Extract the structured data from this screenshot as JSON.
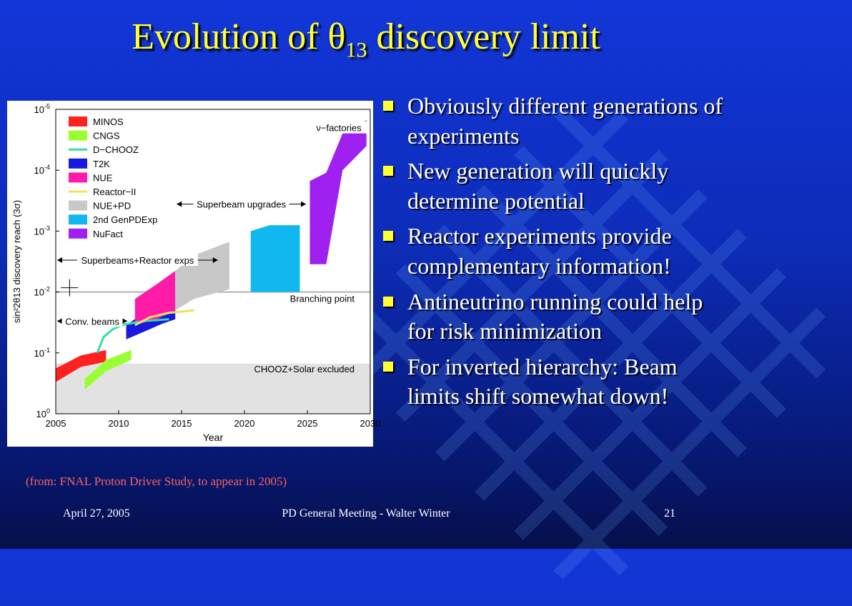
{
  "slide": {
    "title": "Evolution of θ",
    "title_sub": "13",
    "title_tail": " discovery limit",
    "bullets": [
      "Obviously different generations of experiments",
      "New generation will quickly determine potential",
      "Reactor experiments provide complementary information!",
      "Antineutrino running could help for risk minimization",
      "For inverted hierarchy: Beam limits shift somewhat down!"
    ],
    "source_note": "(from: FNAL Proton Driver Study, to appear in 2005)",
    "footer": {
      "date": "April 27, 2005",
      "event": "PD General Meeting - Walter Winter",
      "page": "21"
    },
    "colors": {
      "title": "#ffff33",
      "bullet_marker": "#ffff33",
      "source_note": "#ff6060"
    }
  },
  "chart_data": {
    "type": "area",
    "xlabel": "Year",
    "ylabel": "sin²2θ13 discovery reach (3σ)",
    "xlim": [
      2005,
      2030
    ],
    "x_ticks": [
      "2005",
      "2010",
      "2015",
      "2020",
      "2025",
      "2030"
    ],
    "y_scale": "log-reversed",
    "ylim": [
      1e-05,
      1
    ],
    "y_tick_exponents": [
      "-5",
      "-4",
      "-3",
      "-2",
      "-1",
      "0"
    ],
    "y_tick_base": "10",
    "legend_position": "top-left",
    "legend": [
      {
        "name": "MINOS",
        "color": "#ff2020",
        "kind": "box"
      },
      {
        "name": "CNGS",
        "color": "#99ff33",
        "kind": "box"
      },
      {
        "name": "D−CHOOZ",
        "color": "#33ddaa",
        "kind": "line"
      },
      {
        "name": "T2K",
        "color": "#1818e0",
        "kind": "box"
      },
      {
        "name": "NUE",
        "color": "#ff1aa8",
        "kind": "box"
      },
      {
        "name": "Reactor−II",
        "color": "#f0e060",
        "kind": "line"
      },
      {
        "name": "NUE+PD",
        "color": "#c8c8c8",
        "kind": "box"
      },
      {
        "name": "2nd GenPDExp",
        "color": "#11b8f0",
        "kind": "box"
      },
      {
        "name": "NuFact",
        "color": "#a020f0",
        "kind": "box"
      }
    ],
    "excluded_region": {
      "label": "CHOOZ+Solar excluded",
      "y_from": 0.15,
      "y_to": 1
    },
    "reference_line": {
      "label": "Branching point",
      "y": 0.01
    },
    "bands": [
      {
        "name": "MINOS",
        "color": "#ff2020",
        "x": [
          2005.0,
          2007.0,
          2009.0
        ],
        "y_lower": [
          0.3,
          0.17,
          0.14
        ],
        "y_upper": [
          0.18,
          0.11,
          0.09
        ]
      },
      {
        "name": "CNGS",
        "color": "#99ff33",
        "x": [
          2007.3,
          2009.0,
          2011.0
        ],
        "y_lower": [
          0.4,
          0.2,
          0.13
        ],
        "y_upper": [
          0.27,
          0.13,
          0.09
        ]
      },
      {
        "name": "T2K",
        "color": "#1818e0",
        "x": [
          2010.6,
          2012.0,
          2013.5,
          2014.5
        ],
        "y_lower": [
          0.06,
          0.045,
          0.033,
          0.028
        ],
        "y_upper": [
          0.035,
          0.022,
          0.014,
          0.011
        ]
      },
      {
        "name": "NUE",
        "color": "#ff1aa8",
        "x": [
          2011.3,
          2013.0,
          2014.5
        ],
        "y_lower": [
          0.035,
          0.028,
          0.02
        ],
        "y_upper": [
          0.013,
          0.0075,
          0.0045
        ]
      },
      {
        "name": "NUE+PD",
        "color": "#c8c8c8",
        "x": [
          2014.5,
          2016.0,
          2018.8
        ],
        "y_lower": [
          0.02,
          0.013,
          0.009
        ],
        "y_upper": [
          0.0045,
          0.0025,
          0.0015
        ]
      },
      {
        "name": "2nd GenPDExp",
        "color": "#11b8f0",
        "x": [
          2020.5,
          2022.0,
          2024.4
        ],
        "y_lower": [
          0.01,
          0.01,
          0.01
        ],
        "y_upper": [
          0.001,
          0.0008,
          0.0008
        ]
      },
      {
        "name": "NuFact",
        "color": "#a020f0",
        "x": [
          2025.2,
          2026.5,
          2027.8,
          2029.7
        ],
        "y_lower": [
          0.0035,
          0.0035,
          0.0001,
          4e-05
        ],
        "y_upper": [
          0.00015,
          0.00011,
          2.5e-05,
          1.5e-05
        ]
      }
    ],
    "lines": [
      {
        "name": "D−CHOOZ",
        "color": "#33ddaa",
        "x": [
          2008.3,
          2008.8,
          2009.6,
          2010.5,
          2012.0,
          2014.0
        ],
        "y": [
          0.1,
          0.055,
          0.04,
          0.034,
          0.03,
          0.028
        ]
      },
      {
        "name": "Reactor−II",
        "color": "#f0e060",
        "x": [
          2011.3,
          2012.5,
          2014.0,
          2016.0
        ],
        "y": [
          0.035,
          0.026,
          0.022,
          0.02
        ]
      }
    ],
    "annotations": [
      {
        "text": "ν−factories",
        "x_range": [
          2025.0,
          2030.0
        ],
        "y": 2e-05
      },
      {
        "text": "Superbeam upgrades",
        "x_range": [
          2014.5,
          2025.0
        ],
        "y": 0.00036
      },
      {
        "text": "Superbeams+Reactor exps",
        "x_range": [
          2005.0,
          2018.0
        ],
        "y": 0.003
      },
      {
        "text": "Conv. beams",
        "x_range": [
          2005.0,
          2010.8
        ],
        "y": 0.03
      }
    ],
    "crosshair": {
      "x": 2006.1,
      "y": 0.0085
    }
  }
}
